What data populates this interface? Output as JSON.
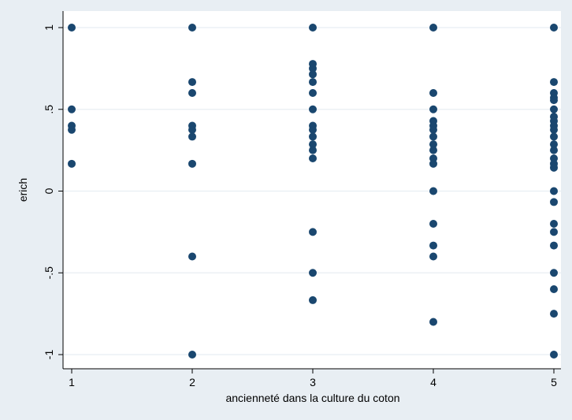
{
  "chart_data": {
    "type": "scatter",
    "xlabel": "ancienneté dans la culture du coton",
    "ylabel": "erich",
    "xlim": [
      1,
      5
    ],
    "ylim": [
      -1,
      1
    ],
    "x_ticks": [
      1,
      2,
      3,
      4,
      5
    ],
    "x_tick_labels": [
      "1",
      "2",
      "3",
      "4",
      "5"
    ],
    "y_ticks": [
      -1,
      -0.5,
      0,
      0.5,
      1
    ],
    "y_tick_labels": [
      "-1",
      "-.5",
      "0",
      ".5",
      "1"
    ],
    "grid": "horizontal",
    "colors": {
      "outer_background": "#e8eef3",
      "plot_background": "#ffffff",
      "gridline": "#e8eef3",
      "marker": "#1a476f",
      "axis": "#000000"
    },
    "points": [
      [
        1,
        1
      ],
      [
        1,
        0.5
      ],
      [
        1,
        0.4
      ],
      [
        1,
        0.375
      ],
      [
        1,
        0.167
      ],
      [
        2,
        1
      ],
      [
        2,
        0.667
      ],
      [
        2,
        0.6
      ],
      [
        2,
        0.4
      ],
      [
        2,
        0.375
      ],
      [
        2,
        0.333
      ],
      [
        2,
        0.167
      ],
      [
        2,
        -0.4
      ],
      [
        2,
        -1
      ],
      [
        3,
        1
      ],
      [
        3,
        0.778
      ],
      [
        3,
        0.75
      ],
      [
        3,
        0.714
      ],
      [
        3,
        0.667
      ],
      [
        3,
        0.6
      ],
      [
        3,
        0.5
      ],
      [
        3,
        0.4
      ],
      [
        3,
        0.375
      ],
      [
        3,
        0.333
      ],
      [
        3,
        0.286
      ],
      [
        3,
        0.25
      ],
      [
        3,
        0.2
      ],
      [
        3,
        -0.25
      ],
      [
        3,
        -0.5
      ],
      [
        3,
        -0.667
      ],
      [
        4,
        1
      ],
      [
        4,
        0.6
      ],
      [
        4,
        0.5
      ],
      [
        4,
        0.429
      ],
      [
        4,
        0.4
      ],
      [
        4,
        0.375
      ],
      [
        4,
        0.333
      ],
      [
        4,
        0.286
      ],
      [
        4,
        0.25
      ],
      [
        4,
        0.2
      ],
      [
        4,
        0.167
      ],
      [
        4,
        0
      ],
      [
        4,
        -0.2
      ],
      [
        4,
        -0.333
      ],
      [
        4,
        -0.4
      ],
      [
        4,
        -0.8
      ],
      [
        5,
        1
      ],
      [
        5,
        0.667
      ],
      [
        5,
        0.6
      ],
      [
        5,
        0.571
      ],
      [
        5,
        0.556
      ],
      [
        5,
        0.5
      ],
      [
        5,
        0.455
      ],
      [
        5,
        0.429
      ],
      [
        5,
        0.4
      ],
      [
        5,
        0.375
      ],
      [
        5,
        0.333
      ],
      [
        5,
        0.286
      ],
      [
        5,
        0.25
      ],
      [
        5,
        0.2
      ],
      [
        5,
        0.167
      ],
      [
        5,
        0.143
      ],
      [
        5,
        0
      ],
      [
        5,
        -0.067
      ],
      [
        5,
        -0.2
      ],
      [
        5,
        -0.25
      ],
      [
        5,
        -0.333
      ],
      [
        5,
        -0.5
      ],
      [
        5,
        -0.6
      ],
      [
        5,
        -0.75
      ],
      [
        5,
        -1
      ]
    ]
  }
}
